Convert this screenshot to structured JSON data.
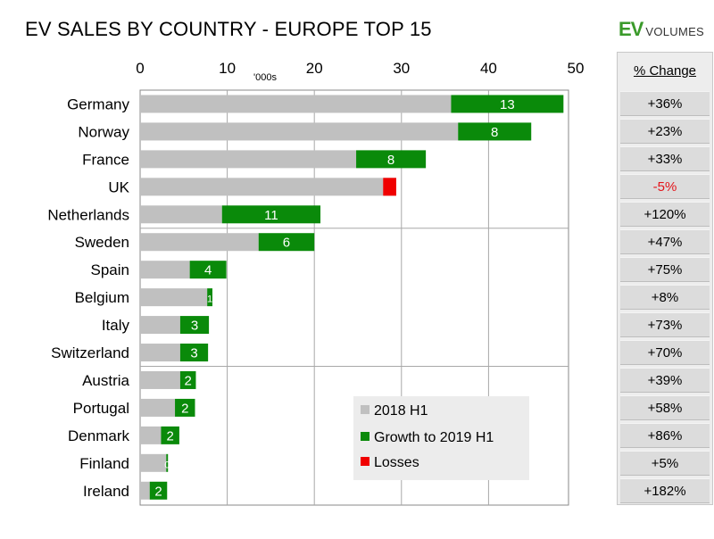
{
  "title": "EV SALES BY COUNTRY - EUROPE TOP 15",
  "logo": {
    "ev": "EV",
    "volumes": "VOLUMES"
  },
  "pct_header": "% Change",
  "colors": {
    "base": "#c0c0c0",
    "growth": "#0a8a0a",
    "loss": "#f00000"
  },
  "chart_data": {
    "type": "bar",
    "orientation": "horizontal",
    "stacked": true,
    "title": "EV SALES BY COUNTRY - EUROPE TOP 15",
    "unit_label": "'000s",
    "xlim": [
      0,
      50
    ],
    "xticks": [
      0,
      10,
      20,
      30,
      40,
      50
    ],
    "grid": true,
    "legend_position": "bottom-right",
    "categories": [
      "Germany",
      "Norway",
      "France",
      "UK",
      "Netherlands",
      "Sweden",
      "Spain",
      "Belgium",
      "Italy",
      "Switzerland",
      "Austria",
      "Portugal",
      "Denmark",
      "Finland",
      "Ireland"
    ],
    "series": [
      {
        "name": "2018 H1",
        "values": [
          35.7,
          36.5,
          24.8,
          29.4,
          9.4,
          13.6,
          5.7,
          7.7,
          4.6,
          4.6,
          4.6,
          4.0,
          2.4,
          3.0,
          1.1
        ]
      },
      {
        "name": "Growth to 2019 H1",
        "values": [
          12.9,
          8.4,
          8.0,
          0,
          11.3,
          6.4,
          4.2,
          0.6,
          3.3,
          3.2,
          1.8,
          2.3,
          2.1,
          0.2,
          2.0
        ],
        "labels": [
          "13",
          "8",
          "8",
          "",
          "11",
          "6",
          "4",
          "1",
          "3",
          "3",
          "2",
          "2",
          "2",
          "0",
          "2"
        ]
      },
      {
        "name": "Losses",
        "values": [
          0,
          0,
          0,
          1.5,
          0,
          0,
          0,
          0,
          0,
          0,
          0,
          0,
          0,
          0,
          0
        ]
      }
    ],
    "pct_change": [
      "+36%",
      "+23%",
      "+33%",
      "-5%",
      "+120%",
      "+47%",
      "+75%",
      "+8%",
      "+73%",
      "+70%",
      "+39%",
      "+58%",
      "+86%",
      "+5%",
      "+182%"
    ]
  }
}
